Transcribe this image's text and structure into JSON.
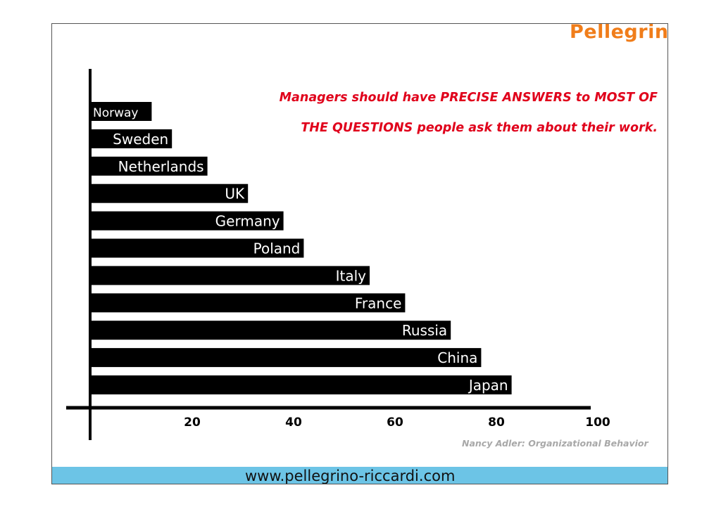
{
  "brand": {
    "logo_text": "Pellegrino",
    "logo_color": "#f07d1a"
  },
  "headline": {
    "line1": "Managers should have PRECISE ANSWERS to MOST OF",
    "line2": "THE QUESTIONS people ask them about their work.",
    "color": "#e0001b"
  },
  "source": "Nancy Adler: Organizational Behavior",
  "footer": {
    "url": "www.pellegrino-riccardi.com",
    "color": "#6cc4e6"
  },
  "chart_data": {
    "type": "bar",
    "orientation": "horizontal",
    "categories": [
      "Norway",
      "Sweden",
      "Netherlands",
      "UK",
      "Germany",
      "Poland",
      "Italy",
      "France",
      "Russia",
      "China",
      "Japan"
    ],
    "values": [
      12,
      16,
      23,
      31,
      38,
      42,
      55,
      62,
      71,
      77,
      83
    ],
    "x_ticks": [
      20,
      40,
      60,
      80,
      100
    ],
    "xlim": [
      0,
      100
    ],
    "bar_color": "#000000",
    "label_color": "#ffffff"
  }
}
